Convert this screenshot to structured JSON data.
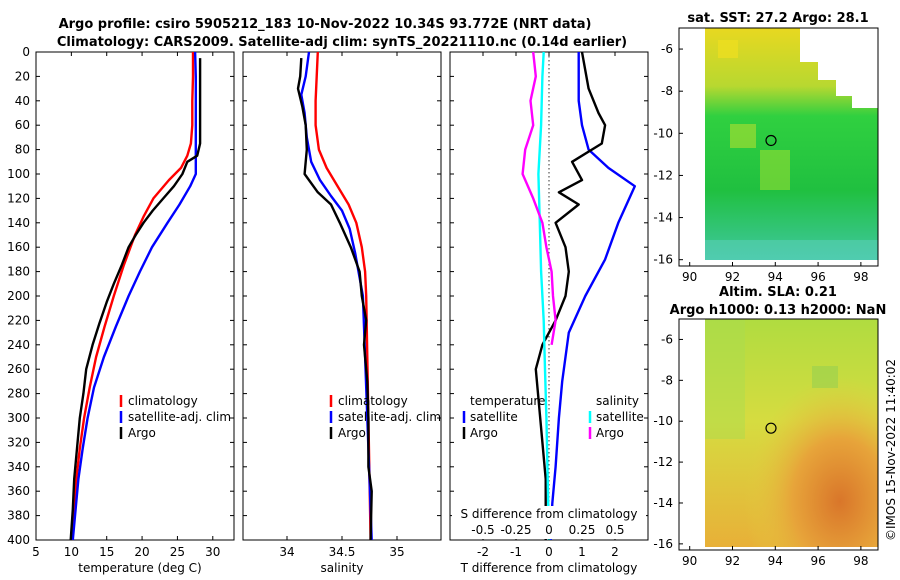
{
  "title": {
    "line1": "Argo profile: csiro 5905212_183 10-Nov-2022 10.34S 93.772E (NRT data)",
    "line2": "Climatology: CARS2009. Satellite-adj clim: synTS_20221110.nc (0.14d earlier)"
  },
  "colors": {
    "climatology": "#ff0000",
    "satellite": "#0000ff",
    "argo": "#000000",
    "sat_t": "#00ffff",
    "argo_s": "#ff00ff"
  },
  "chart_data": [
    {
      "type": "line",
      "id": "temperature",
      "xlabel": "temperature (deg C)",
      "ylabel": "",
      "xlim": [
        5,
        33
      ],
      "ylim": [
        400,
        0
      ],
      "xticks": [
        "5",
        "10",
        "15",
        "20",
        "25",
        "30"
      ],
      "yticks": [
        "0",
        "20",
        "40",
        "60",
        "80",
        "100",
        "120",
        "140",
        "160",
        "180",
        "200",
        "220",
        "240",
        "260",
        "280",
        "300",
        "320",
        "340",
        "360",
        "380",
        "400"
      ],
      "legend": [
        "climatology",
        "satellite-adj. clim",
        "Argo"
      ],
      "series": [
        {
          "name": "climatology",
          "color": "#ff0000",
          "points": [
            [
              27.2,
              0
            ],
            [
              27.2,
              20
            ],
            [
              27.1,
              40
            ],
            [
              27.1,
              60
            ],
            [
              26.9,
              75
            ],
            [
              26.4,
              85
            ],
            [
              25.5,
              95
            ],
            [
              23.8,
              105
            ],
            [
              21.6,
              120
            ],
            [
              20.2,
              135
            ],
            [
              19.0,
              150
            ],
            [
              17.4,
              175
            ],
            [
              16.0,
              200
            ],
            [
              14.7,
              225
            ],
            [
              13.5,
              250
            ],
            [
              12.6,
              275
            ],
            [
              11.8,
              300
            ],
            [
              11.2,
              325
            ],
            [
              10.7,
              350
            ],
            [
              10.3,
              375
            ],
            [
              10.0,
              400
            ]
          ]
        },
        {
          "name": "satellite-adj. clim",
          "color": "#0000ff",
          "points": [
            [
              27.5,
              0
            ],
            [
              27.6,
              20
            ],
            [
              27.6,
              40
            ],
            [
              27.6,
              60
            ],
            [
              27.6,
              80
            ],
            [
              27.6,
              90
            ],
            [
              27.6,
              100
            ],
            [
              26.8,
              110
            ],
            [
              25.3,
              125
            ],
            [
              23.6,
              140
            ],
            [
              21.4,
              160
            ],
            [
              19.7,
              180
            ],
            [
              18.1,
              200
            ],
            [
              16.3,
              225
            ],
            [
              14.6,
              250
            ],
            [
              13.2,
              275
            ],
            [
              12.3,
              300
            ],
            [
              11.6,
              325
            ],
            [
              11.0,
              350
            ],
            [
              10.6,
              375
            ],
            [
              10.2,
              400
            ]
          ]
        },
        {
          "name": "Argo",
          "color": "#000000",
          "points": [
            [
              28.2,
              5
            ],
            [
              28.2,
              20
            ],
            [
              28.2,
              40
            ],
            [
              28.2,
              60
            ],
            [
              28.2,
              75
            ],
            [
              27.8,
              85
            ],
            [
              26.4,
              90
            ],
            [
              25.7,
              100
            ],
            [
              24.5,
              110
            ],
            [
              23.0,
              120
            ],
            [
              21.5,
              130
            ],
            [
              20.2,
              140
            ],
            [
              19.1,
              150
            ],
            [
              18.1,
              160
            ],
            [
              17.1,
              175
            ],
            [
              16.0,
              190
            ],
            [
              15.0,
              205
            ],
            [
              14.0,
              222
            ],
            [
              13.0,
              240
            ],
            [
              12.1,
              260
            ],
            [
              11.7,
              280
            ],
            [
              11.2,
              300
            ],
            [
              10.8,
              325
            ],
            [
              10.4,
              350
            ],
            [
              10.2,
              375
            ],
            [
              9.9,
              400
            ]
          ]
        }
      ]
    },
    {
      "type": "line",
      "id": "salinity",
      "xlabel": "salinity",
      "xlim": [
        33.6,
        35.4
      ],
      "ylim": [
        400,
        0
      ],
      "xticks": [
        "34",
        "34.5",
        "35"
      ],
      "legend": [
        "climatology",
        "satellite-adj. clim",
        "Argo"
      ],
      "series": [
        {
          "name": "climatology",
          "color": "#ff0000",
          "points": [
            [
              34.28,
              0
            ],
            [
              34.27,
              20
            ],
            [
              34.26,
              40
            ],
            [
              34.26,
              60
            ],
            [
              34.29,
              80
            ],
            [
              34.36,
              95
            ],
            [
              34.46,
              110
            ],
            [
              34.56,
              125
            ],
            [
              34.63,
              140
            ],
            [
              34.68,
              160
            ],
            [
              34.71,
              180
            ],
            [
              34.72,
              200
            ],
            [
              34.73,
              250
            ],
            [
              34.74,
              300
            ],
            [
              34.75,
              350
            ],
            [
              34.76,
              400
            ]
          ]
        },
        {
          "name": "satellite-adj. clim",
          "color": "#0000ff",
          "points": [
            [
              34.2,
              0
            ],
            [
              34.17,
              20
            ],
            [
              34.13,
              35
            ],
            [
              34.16,
              50
            ],
            [
              34.18,
              70
            ],
            [
              34.22,
              90
            ],
            [
              34.3,
              105
            ],
            [
              34.4,
              118
            ],
            [
              34.5,
              130
            ],
            [
              34.57,
              145
            ],
            [
              34.62,
              165
            ],
            [
              34.66,
              185
            ],
            [
              34.69,
              200
            ],
            [
              34.71,
              250
            ],
            [
              34.73,
              300
            ],
            [
              34.75,
              350
            ],
            [
              34.77,
              400
            ]
          ]
        },
        {
          "name": "Argo",
          "color": "#000000",
          "points": [
            [
              34.13,
              5
            ],
            [
              34.12,
              20
            ],
            [
              34.1,
              30
            ],
            [
              34.14,
              45
            ],
            [
              34.17,
              60
            ],
            [
              34.18,
              80
            ],
            [
              34.16,
              100
            ],
            [
              34.28,
              115
            ],
            [
              34.4,
              125
            ],
            [
              34.48,
              140
            ],
            [
              34.58,
              160
            ],
            [
              34.66,
              180
            ],
            [
              34.68,
              200
            ],
            [
              34.72,
              220
            ],
            [
              34.7,
              240
            ],
            [
              34.73,
              270
            ],
            [
              34.74,
              300
            ],
            [
              34.74,
              340
            ],
            [
              34.77,
              360
            ],
            [
              34.76,
              400
            ]
          ]
        }
      ]
    },
    {
      "type": "line",
      "id": "difference",
      "xlabel": "T difference from climatology",
      "x2label": "S difference from climatology",
      "xlim": [
        -3,
        3
      ],
      "ylim": [
        400,
        0
      ],
      "xticks": [
        "-2",
        "-1",
        "0",
        "1",
        "2"
      ],
      "x2ticks": [
        "-0.5",
        "-0.25",
        "0",
        "0.25",
        "0.5"
      ],
      "legend_temperature": [
        "temperature",
        "satellite",
        "Argo"
      ],
      "legend_salinity": [
        "salinity",
        "satellite",
        "Argo"
      ],
      "series": [
        {
          "name": "T satellite",
          "color": "#0000ff",
          "points": [
            [
              0.9,
              0
            ],
            [
              0.9,
              20
            ],
            [
              0.9,
              40
            ],
            [
              1.0,
              60
            ],
            [
              1.2,
              80
            ],
            [
              1.8,
              95
            ],
            [
              2.6,
              110
            ],
            [
              2.1,
              140
            ],
            [
              1.7,
              170
            ],
            [
              1.1,
              200
            ],
            [
              0.6,
              230
            ],
            [
              0.4,
              270
            ],
            [
              0.3,
              300
            ],
            [
              0.2,
              340
            ],
            [
              0.1,
              370
            ],
            [
              0.05,
              400
            ]
          ]
        },
        {
          "name": "T Argo",
          "color": "#000000",
          "points": [
            [
              1.0,
              0
            ],
            [
              1.2,
              30
            ],
            [
              1.5,
              50
            ],
            [
              1.7,
              60
            ],
            [
              1.6,
              75
            ],
            [
              0.7,
              90
            ],
            [
              1.0,
              105
            ],
            [
              0.3,
              115
            ],
            [
              0.9,
              125
            ],
            [
              0.2,
              140
            ],
            [
              0.5,
              160
            ],
            [
              0.6,
              180
            ],
            [
              0.5,
              200
            ],
            [
              0.2,
              220
            ],
            [
              -0.2,
              240
            ],
            [
              -0.4,
              260
            ],
            [
              -0.3,
              290
            ],
            [
              -0.2,
              320
            ],
            [
              -0.1,
              350
            ],
            [
              -0.1,
              400
            ]
          ]
        },
        {
          "name": "S satellite",
          "color": "#00ffff",
          "points": [
            [
              -0.04,
              0
            ],
            [
              -0.05,
              20
            ],
            [
              -0.06,
              60
            ],
            [
              -0.08,
              100
            ],
            [
              -0.07,
              140
            ],
            [
              -0.06,
              180
            ],
            [
              -0.04,
              220
            ],
            [
              -0.03,
              260
            ],
            [
              -0.02,
              300
            ],
            [
              -0.01,
              350
            ],
            [
              0.0,
              400
            ]
          ]
        },
        {
          "name": "S Argo",
          "color": "#ff00ff",
          "points": [
            [
              -0.12,
              0
            ],
            [
              -0.1,
              20
            ],
            [
              -0.14,
              40
            ],
            [
              -0.12,
              60
            ],
            [
              -0.18,
              80
            ],
            [
              -0.2,
              100
            ],
            [
              -0.12,
              120
            ],
            [
              -0.05,
              140
            ],
            [
              -0.02,
              160
            ],
            [
              0.02,
              180
            ],
            [
              0.03,
              200
            ],
            [
              0.05,
              220
            ],
            [
              0.02,
              240
            ]
          ]
        }
      ]
    },
    {
      "type": "heatmap",
      "id": "sst-map",
      "title": "sat. SST: 27.2 Argo: 28.1",
      "xlim": [
        89.5,
        98.8
      ],
      "ylim": [
        -16.3,
        -5
      ],
      "xticks": [
        "90",
        "92",
        "94",
        "96",
        "98"
      ],
      "yticks": [
        "-6",
        "-8",
        "-10",
        "-12",
        "-14",
        "-16"
      ],
      "argo_position": [
        93.8,
        -10.34
      ]
    },
    {
      "type": "heatmap",
      "id": "sla-map",
      "title": "Altim. SLA: 0.21",
      "subtitle": "Argo h1000: 0.13 h2000: NaN",
      "xlim": [
        89.5,
        98.8
      ],
      "ylim": [
        -16.3,
        -5
      ],
      "xticks": [
        "90",
        "92",
        "94",
        "96",
        "98"
      ],
      "yticks": [
        "-6",
        "-8",
        "-10",
        "-12",
        "-14",
        "-16"
      ],
      "argo_position": [
        93.8,
        -10.34
      ]
    }
  ],
  "watermark": "©IMOS 15-Nov-2022 11:40:02"
}
